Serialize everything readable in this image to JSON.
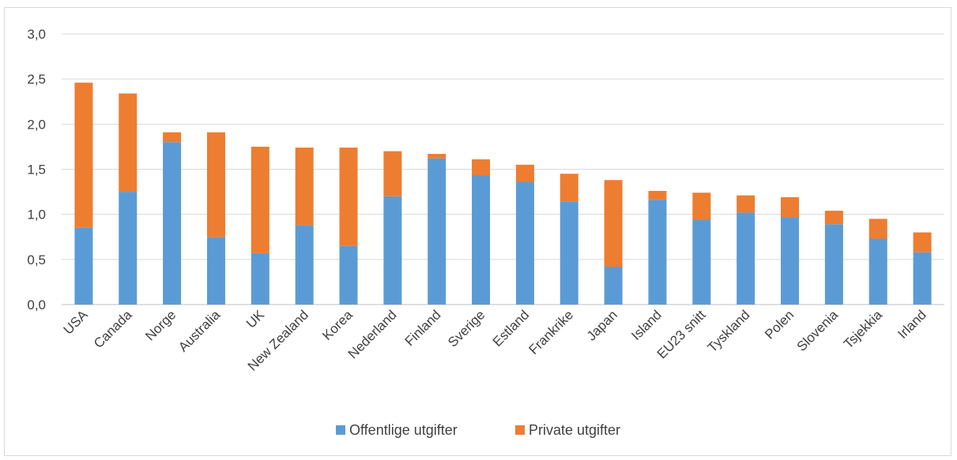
{
  "chart_data": {
    "type": "bar",
    "stacked": true,
    "categories": [
      "USA",
      "Canada",
      "Norge",
      "Australia",
      "UK",
      "New Zealand",
      "Korea",
      "Nederland",
      "Finland",
      "Sverige",
      "Estland",
      "Frankrike",
      "Japan",
      "Island",
      "EU23 snitt",
      "Tyskland",
      "Polen",
      "Slovenia",
      "Tsjekkia",
      "Irland"
    ],
    "series": [
      {
        "name": "Offentlige utgifter",
        "color": "#5b9bd5",
        "values": [
          0.85,
          1.25,
          1.8,
          0.75,
          0.57,
          0.88,
          0.65,
          1.2,
          1.62,
          1.43,
          1.36,
          1.14,
          0.42,
          1.16,
          0.94,
          1.02,
          0.97,
          0.89,
          0.73,
          0.58
        ]
      },
      {
        "name": "Private utgifter",
        "color": "#ed7d31",
        "values": [
          1.61,
          1.09,
          0.11,
          1.16,
          1.18,
          0.86,
          1.09,
          0.5,
          0.05,
          0.18,
          0.19,
          0.31,
          0.96,
          0.1,
          0.3,
          0.19,
          0.22,
          0.15,
          0.22,
          0.22
        ]
      }
    ],
    "yticks": [
      "0,0",
      "0,5",
      "1,0",
      "1,5",
      "2,0",
      "2,5",
      "3,0"
    ],
    "ylim": [
      0,
      3.0
    ],
    "grid": true,
    "legend_position": "bottom"
  }
}
